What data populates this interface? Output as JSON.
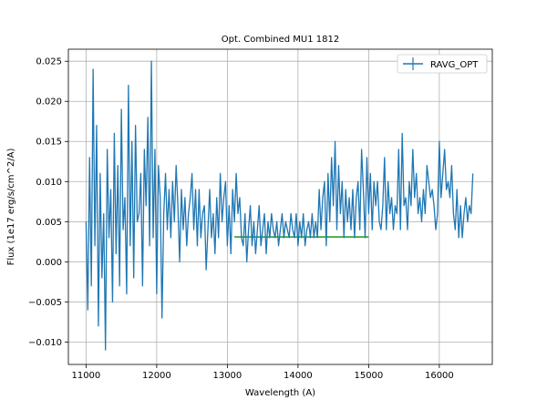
{
  "chart_data": {
    "type": "line",
    "title": "Opt. Combined MU1 1812",
    "xlabel": "Wavelength (A)",
    "ylabel": "Flux (1e17 erg/s/cm^2/A)",
    "xlim": [
      10750,
      16750
    ],
    "ylim": [
      -0.0128,
      0.0265
    ],
    "xticks": [
      11000,
      12000,
      13000,
      14000,
      15000,
      16000
    ],
    "xtick_labels": [
      "11000",
      "12000",
      "13000",
      "14000",
      "15000",
      "16000"
    ],
    "yticks": [
      -0.01,
      -0.005,
      0.0,
      0.005,
      0.01,
      0.015,
      0.02,
      0.025
    ],
    "ytick_labels": [
      "−0.010",
      "−0.005",
      "0.000",
      "0.005",
      "0.010",
      "0.015",
      "0.020",
      "0.025"
    ],
    "grid": true,
    "legend_position": "top-right",
    "series": [
      {
        "name": "RAVG_OPT",
        "color": "#1f77b4",
        "x_start": 11000,
        "x_step": 25,
        "values": [
          0.005,
          -0.006,
          0.013,
          -0.003,
          0.024,
          0.002,
          0.017,
          -0.008,
          0.011,
          -0.002,
          0.006,
          -0.011,
          0.014,
          0.003,
          0.009,
          -0.005,
          0.016,
          0.001,
          0.012,
          -0.003,
          0.019,
          0.004,
          0.008,
          -0.004,
          0.022,
          0.002,
          0.015,
          -0.002,
          0.017,
          0.005,
          0.006,
          0.011,
          -0.003,
          0.014,
          0.007,
          0.018,
          0.002,
          0.025,
          0.003,
          0.014,
          -0.004,
          0.012,
          0.008,
          -0.007,
          0.006,
          0.011,
          0.004,
          0.009,
          0.003,
          0.01,
          0.005,
          0.012,
          0.007,
          0.0,
          0.009,
          0.004,
          0.008,
          0.002,
          0.006,
          0.008,
          0.011,
          0.004,
          0.009,
          0.002,
          0.009,
          0.003,
          0.006,
          0.007,
          -0.001,
          0.004,
          0.009,
          0.003,
          0.006,
          0.001,
          0.008,
          0.003,
          0.011,
          0.005,
          0.008,
          0.01,
          0.002,
          0.007,
          0.001,
          0.009,
          0.005,
          0.011,
          0.006,
          0.008,
          0.003,
          0.002,
          0.006,
          0.0,
          0.004,
          0.007,
          0.002,
          0.005,
          0.001,
          0.004,
          0.007,
          0.002,
          0.004,
          0.006,
          0.001,
          0.005,
          0.003,
          0.006,
          0.004,
          0.003,
          0.005,
          0.002,
          0.004,
          0.006,
          0.003,
          0.005,
          0.004,
          0.003,
          0.006,
          0.004,
          0.003,
          0.006,
          0.002,
          0.005,
          0.003,
          0.006,
          0.002,
          0.004,
          0.005,
          0.003,
          0.006,
          0.003,
          0.005,
          0.003,
          0.009,
          0.004,
          0.008,
          0.01,
          0.002,
          0.011,
          0.005,
          0.013,
          0.007,
          0.015,
          0.004,
          0.012,
          0.006,
          0.01,
          0.003,
          0.009,
          0.005,
          0.008,
          0.004,
          0.009,
          0.003,
          0.008,
          0.01,
          0.004,
          0.014,
          0.009,
          0.003,
          0.013,
          0.006,
          0.011,
          0.004,
          0.01,
          0.007,
          0.01,
          0.005,
          0.004,
          0.007,
          0.013,
          0.004,
          0.01,
          0.006,
          0.008,
          0.004,
          0.007,
          0.006,
          0.014,
          0.004,
          0.016,
          0.007,
          0.008,
          0.004,
          0.01,
          0.007,
          0.014,
          0.008,
          0.011,
          0.006,
          0.008,
          0.005,
          0.009,
          0.006,
          0.012,
          0.01,
          0.008,
          0.009,
          0.007,
          0.004,
          0.006,
          0.015,
          0.008,
          0.011,
          0.014,
          0.009,
          0.01,
          0.008,
          0.012,
          0.006,
          0.004,
          0.009,
          0.003,
          0.007,
          0.003,
          0.006,
          0.008,
          0.005,
          0.007,
          0.006,
          0.011
        ]
      }
    ],
    "reference_line": {
      "color": "#2ca02c",
      "y": 0.0031,
      "x_range": [
        13100,
        15000
      ]
    }
  }
}
